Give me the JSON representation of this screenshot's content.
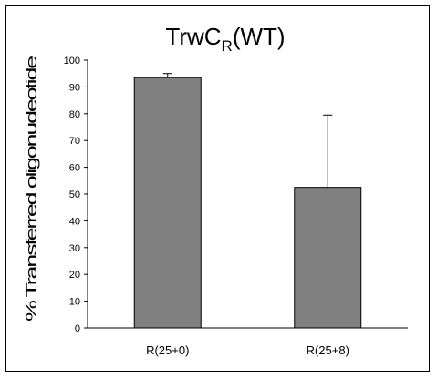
{
  "chart_data": {
    "type": "bar",
    "title": "TrwC",
    "title_subscript": "R",
    "title_suffix": "(WT)",
    "xlabel": "",
    "ylabel": "% Transferred oligonudeotide",
    "categories": [
      "R(25+0)",
      "R(25+8)"
    ],
    "values": [
      93.5,
      52.5
    ],
    "error_plus": [
      1.5,
      27
    ],
    "ylim": [
      0,
      100
    ],
    "yticks": [
      0,
      10,
      20,
      30,
      40,
      50,
      60,
      70,
      80,
      90,
      100
    ],
    "grid": false,
    "legend": "none",
    "bar_color": "#808080",
    "bar_edge_color": "#000000"
  }
}
